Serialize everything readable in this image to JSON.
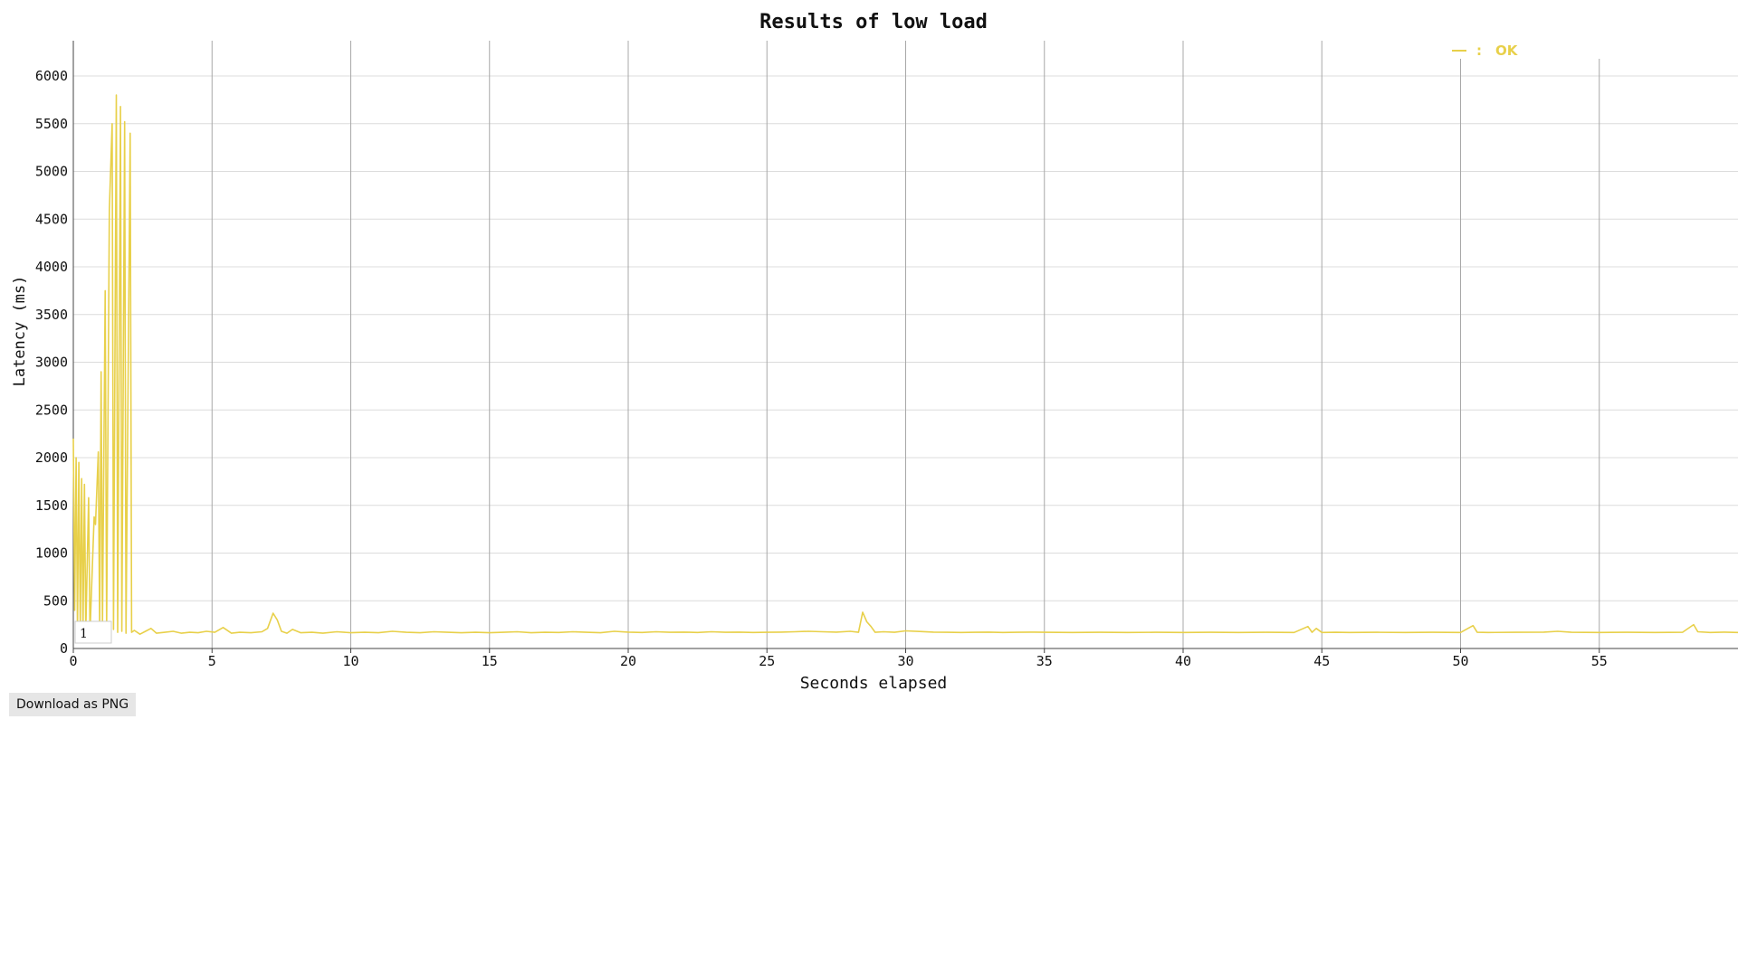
{
  "download_label": "Download as PNG",
  "colors": {
    "series": "#e8d04a",
    "grid_vertical": "#a8a8a8",
    "grid_horizontal": "#dcdcdc",
    "axis": "#444444",
    "text": "#111111"
  },
  "zoom_box_label": "1",
  "chart_data": {
    "type": "line",
    "title": "Results of low load",
    "xlabel": "Seconds elapsed",
    "ylabel": "Latency (ms)",
    "xlim": [
      0,
      60
    ],
    "ylim": [
      0,
      6400
    ],
    "x_ticks": [
      0,
      5,
      10,
      15,
      20,
      25,
      30,
      35,
      40,
      45,
      50,
      55
    ],
    "y_ticks": [
      0,
      500,
      1000,
      1500,
      2000,
      2500,
      3000,
      3500,
      4000,
      4500,
      5000,
      5500,
      6000
    ],
    "grid": true,
    "legend": {
      "position": "top-right",
      "entries": [
        "OK"
      ]
    },
    "series": [
      {
        "name": "OK",
        "points": [
          [
            0.0,
            2200
          ],
          [
            0.05,
            400
          ],
          [
            0.1,
            2000
          ],
          [
            0.15,
            200
          ],
          [
            0.2,
            1950
          ],
          [
            0.25,
            180
          ],
          [
            0.3,
            1780
          ],
          [
            0.35,
            200
          ],
          [
            0.4,
            1720
          ],
          [
            0.45,
            190
          ],
          [
            0.55,
            1580
          ],
          [
            0.6,
            160
          ],
          [
            0.75,
            1380
          ],
          [
            0.8,
            1300
          ],
          [
            0.9,
            2060
          ],
          [
            0.95,
            200
          ],
          [
            1.0,
            2900
          ],
          [
            1.05,
            240
          ],
          [
            1.15,
            3750
          ],
          [
            1.2,
            200
          ],
          [
            1.3,
            4600
          ],
          [
            1.4,
            5500
          ],
          [
            1.45,
            200
          ],
          [
            1.55,
            5800
          ],
          [
            1.6,
            170
          ],
          [
            1.7,
            5680
          ],
          [
            1.75,
            180
          ],
          [
            1.85,
            5520
          ],
          [
            1.9,
            160
          ],
          [
            2.05,
            5400
          ],
          [
            2.1,
            170
          ],
          [
            2.2,
            190
          ],
          [
            2.4,
            150
          ],
          [
            2.6,
            180
          ],
          [
            2.8,
            210
          ],
          [
            3.0,
            160
          ],
          [
            3.3,
            170
          ],
          [
            3.6,
            180
          ],
          [
            3.9,
            160
          ],
          [
            4.2,
            170
          ],
          [
            4.5,
            165
          ],
          [
            4.8,
            180
          ],
          [
            5.1,
            170
          ],
          [
            5.4,
            220
          ],
          [
            5.7,
            160
          ],
          [
            6.0,
            170
          ],
          [
            6.4,
            165
          ],
          [
            6.8,
            175
          ],
          [
            7.0,
            210
          ],
          [
            7.2,
            370
          ],
          [
            7.35,
            300
          ],
          [
            7.5,
            180
          ],
          [
            7.7,
            160
          ],
          [
            7.9,
            200
          ],
          [
            8.2,
            165
          ],
          [
            8.6,
            170
          ],
          [
            9.0,
            160
          ],
          [
            9.5,
            175
          ],
          [
            10.0,
            165
          ],
          [
            10.5,
            170
          ],
          [
            11.0,
            165
          ],
          [
            11.5,
            180
          ],
          [
            12.0,
            170
          ],
          [
            12.5,
            165
          ],
          [
            13.0,
            175
          ],
          [
            13.5,
            170
          ],
          [
            14.0,
            165
          ],
          [
            14.5,
            170
          ],
          [
            15.0,
            165
          ],
          [
            15.5,
            170
          ],
          [
            16.0,
            175
          ],
          [
            16.5,
            165
          ],
          [
            17.0,
            170
          ],
          [
            17.5,
            168
          ],
          [
            18.0,
            175
          ],
          [
            18.5,
            170
          ],
          [
            19.0,
            165
          ],
          [
            19.5,
            180
          ],
          [
            20.0,
            172
          ],
          [
            20.5,
            168
          ],
          [
            21.0,
            175
          ],
          [
            21.5,
            170
          ],
          [
            22.0,
            172
          ],
          [
            22.5,
            168
          ],
          [
            23.0,
            175
          ],
          [
            23.5,
            170
          ],
          [
            24.0,
            172
          ],
          [
            24.5,
            168
          ],
          [
            25.0,
            170
          ],
          [
            25.5,
            172
          ],
          [
            26.0,
            175
          ],
          [
            26.5,
            180
          ],
          [
            27.0,
            175
          ],
          [
            27.5,
            172
          ],
          [
            28.0,
            180
          ],
          [
            28.3,
            170
          ],
          [
            28.45,
            380
          ],
          [
            28.6,
            280
          ],
          [
            28.75,
            230
          ],
          [
            28.9,
            170
          ],
          [
            29.2,
            175
          ],
          [
            29.6,
            170
          ],
          [
            30.0,
            185
          ],
          [
            30.5,
            178
          ],
          [
            31.0,
            172
          ],
          [
            31.5,
            170
          ],
          [
            32.0,
            168
          ],
          [
            32.5,
            170
          ],
          [
            33.0,
            172
          ],
          [
            33.5,
            168
          ],
          [
            34.0,
            170
          ],
          [
            34.5,
            172
          ],
          [
            35.0,
            170
          ],
          [
            36.0,
            168
          ],
          [
            37.0,
            170
          ],
          [
            38.0,
            168
          ],
          [
            39.0,
            170
          ],
          [
            40.0,
            168
          ],
          [
            41.0,
            170
          ],
          [
            42.0,
            168
          ],
          [
            43.0,
            170
          ],
          [
            44.0,
            168
          ],
          [
            44.5,
            230
          ],
          [
            44.65,
            170
          ],
          [
            44.8,
            210
          ],
          [
            45.0,
            168
          ],
          [
            45.5,
            170
          ],
          [
            46.0,
            168
          ],
          [
            47.0,
            170
          ],
          [
            48.0,
            168
          ],
          [
            49.0,
            170
          ],
          [
            50.0,
            168
          ],
          [
            50.45,
            240
          ],
          [
            50.6,
            170
          ],
          [
            51.0,
            168
          ],
          [
            52.0,
            170
          ],
          [
            53.0,
            172
          ],
          [
            53.5,
            180
          ],
          [
            54.0,
            170
          ],
          [
            55.0,
            168
          ],
          [
            56.0,
            170
          ],
          [
            57.0,
            168
          ],
          [
            58.0,
            170
          ],
          [
            58.4,
            250
          ],
          [
            58.55,
            175
          ],
          [
            59.0,
            168
          ],
          [
            59.5,
            172
          ],
          [
            60.0,
            168
          ]
        ]
      }
    ]
  }
}
